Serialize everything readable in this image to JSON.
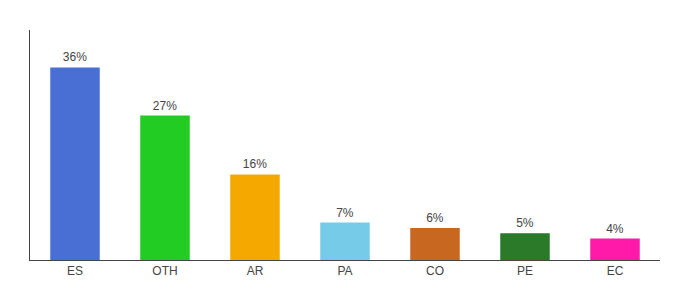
{
  "chart_data": {
    "type": "bar",
    "categories": [
      "ES",
      "OTH",
      "AR",
      "PA",
      "CO",
      "PE",
      "EC"
    ],
    "values": [
      36,
      27,
      16,
      7,
      6,
      5,
      4
    ],
    "value_labels": [
      "36%",
      "27%",
      "16%",
      "7%",
      "6%",
      "5%",
      "4%"
    ],
    "colors": [
      "#4a6fd4",
      "#22cc22",
      "#f5a800",
      "#76cce8",
      "#c86820",
      "#2a7a2a",
      "#ff1aaa"
    ],
    "ylim": [
      0,
      43
    ],
    "grid": false,
    "data_labels": true,
    "tick_labels": "x"
  }
}
